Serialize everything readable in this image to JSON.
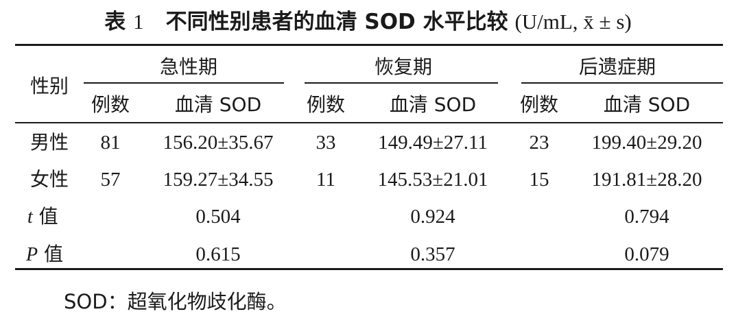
{
  "caption": {
    "label": "表",
    "number": "1",
    "title": "不同性别患者的血清 SOD 水平比较",
    "unit": "(U/mL, x̄ ± s)"
  },
  "table": {
    "row_header": "性别",
    "groups": [
      "急性期",
      "恢复期",
      "后遗症期"
    ],
    "subheaders": {
      "count": "例数",
      "value": "血清 SOD"
    },
    "rows": [
      {
        "label": "男性",
        "cells": [
          "81",
          "156.20±35.67",
          "33",
          "149.49±27.11",
          "23",
          "199.40±29.20"
        ]
      },
      {
        "label": "女性",
        "cells": [
          "57",
          "159.27±34.55",
          "11",
          "145.53±21.01",
          "15",
          "191.81±28.20"
        ]
      }
    ],
    "stats": [
      {
        "symbol": "t",
        "suffix": " 值",
        "values": [
          "0.504",
          "0.924",
          "0.794"
        ]
      },
      {
        "symbol": "P",
        "suffix": " 值",
        "values": [
          "0.615",
          "0.357",
          "0.079"
        ]
      }
    ]
  },
  "footnote": "SOD：超氧化物歧化酶。"
}
